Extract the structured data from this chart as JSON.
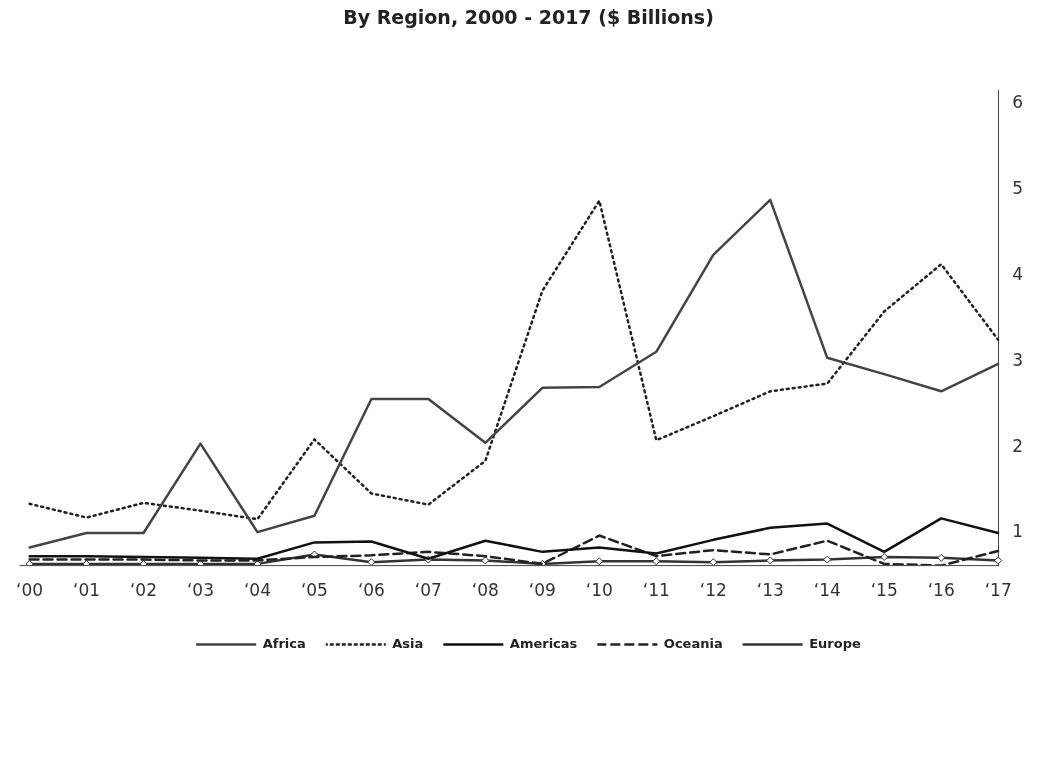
{
  "chart_data": {
    "type": "line",
    "title": "By Region, 2000 - 2017 ($ Billions)",
    "categories": [
      "‘00",
      "‘01",
      "‘02",
      "‘03",
      "‘04",
      "‘05",
      "‘06",
      "‘07",
      "‘08",
      "‘09",
      "‘10",
      "‘11",
      "‘12",
      "‘13",
      "‘14",
      "‘15",
      "‘16",
      "‘17"
    ],
    "ylim": [
      0.62,
      6.15
    ],
    "yticks": [
      1,
      2,
      3,
      4,
      5,
      6
    ],
    "grid": false,
    "legend": "bottom",
    "series": [
      {
        "name": "Africa",
        "color": "#444444",
        "line_style": "solid",
        "values": [
          0.83,
          1.0,
          1.0,
          2.04,
          1.01,
          1.2,
          2.56,
          2.56,
          2.05,
          2.69,
          2.7,
          3.11,
          4.24,
          4.88,
          3.04,
          2.85,
          2.65,
          2.97
        ]
      },
      {
        "name": "Asia",
        "color": "#222222",
        "line_style": "dotted",
        "values": [
          1.34,
          1.18,
          1.35,
          1.26,
          1.16,
          2.09,
          1.46,
          1.33,
          1.84,
          3.82,
          4.87,
          2.08,
          2.36,
          2.65,
          2.74,
          3.58,
          4.13,
          3.25
        ]
      },
      {
        "name": "Americas",
        "color": "#111111",
        "line_style": "solid",
        "values": [
          0.73,
          0.73,
          0.72,
          0.71,
          0.7,
          0.89,
          0.9,
          0.7,
          0.91,
          0.78,
          0.83,
          0.76,
          0.92,
          1.06,
          1.11,
          0.78,
          1.17,
          1.0
        ]
      },
      {
        "name": "Oceania",
        "color": "#222222",
        "line_style": "dashed",
        "values": [
          0.69,
          0.69,
          0.69,
          0.68,
          0.68,
          0.72,
          0.74,
          0.78,
          0.73,
          0.64,
          0.97,
          0.73,
          0.8,
          0.75,
          0.91,
          0.64,
          0.62,
          0.79
        ]
      },
      {
        "name": "Europe",
        "color": "#333333",
        "line_style": "solid",
        "marker": "diamond",
        "values": [
          0.64,
          0.64,
          0.64,
          0.64,
          0.64,
          0.75,
          0.66,
          0.69,
          0.68,
          0.64,
          0.67,
          0.67,
          0.66,
          0.68,
          0.69,
          0.72,
          0.71,
          0.68
        ]
      }
    ]
  }
}
